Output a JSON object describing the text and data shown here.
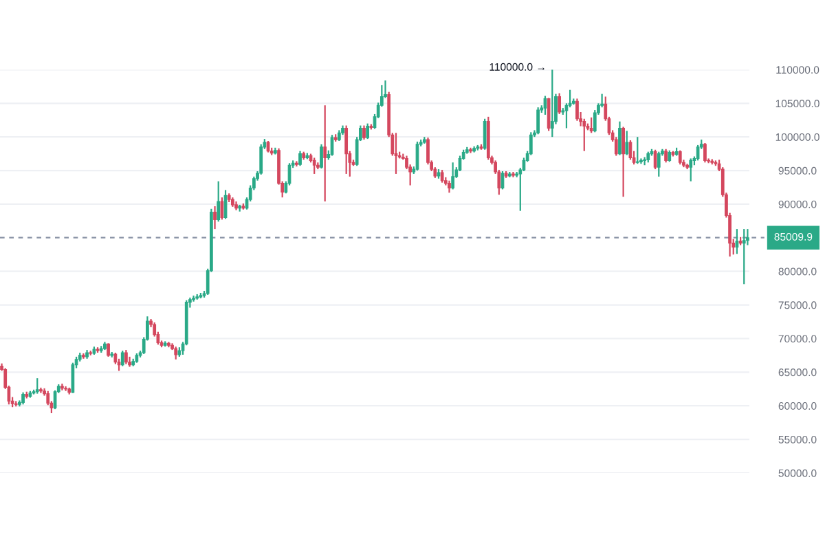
{
  "chart_data": {
    "type": "candlestick",
    "categories": [
      null,
      null,
      null,
      null,
      null,
      null,
      null,
      null,
      null,
      null,
      null,
      null,
      null,
      null,
      null,
      null,
      null,
      null,
      null,
      null,
      null,
      null,
      null,
      null,
      null,
      null,
      null,
      null,
      null,
      null,
      null,
      null,
      null,
      null,
      null,
      null,
      null,
      null,
      null,
      null,
      null,
      null,
      null,
      null,
      null,
      null,
      null,
      null,
      null,
      null,
      null,
      null,
      null,
      null,
      null,
      null,
      null,
      null,
      null,
      null,
      null,
      null,
      null,
      null,
      null,
      null,
      null,
      null,
      null,
      null,
      null,
      null,
      null,
      null,
      null,
      null,
      null,
      null,
      null,
      null,
      null,
      null,
      null,
      null,
      null,
      null,
      null,
      null,
      null,
      null,
      null,
      null,
      null,
      null,
      null,
      null,
      null,
      null,
      null,
      null,
      null,
      null,
      null,
      null,
      null,
      null,
      null,
      null,
      null,
      null,
      null,
      null,
      null,
      null,
      null,
      null,
      null,
      null,
      null,
      null,
      null,
      null,
      null,
      null,
      null,
      null,
      null,
      null,
      null,
      null,
      null,
      null,
      null,
      null,
      null,
      null,
      null,
      null,
      null,
      null,
      null,
      null,
      null,
      null,
      null,
      null,
      null,
      null,
      null,
      null,
      null,
      null,
      null,
      null,
      null,
      null,
      null,
      null,
      null,
      null,
      null,
      null,
      null,
      null,
      null,
      null,
      null,
      null,
      null,
      null,
      null,
      null,
      null,
      null,
      null,
      null,
      null,
      null,
      null,
      null,
      null,
      null,
      null,
      null,
      null,
      null,
      null,
      null,
      null,
      null,
      null,
      null,
      null,
      null,
      null,
      null,
      null,
      null,
      null,
      null,
      null,
      null,
      null,
      null,
      null,
      null,
      null,
      null,
      null,
      null,
      null
    ],
    "ohlc": [
      [
        65900,
        66300,
        65200,
        65400
      ],
      [
        65400,
        65600,
        62500,
        62750
      ],
      [
        62750,
        63000,
        60200,
        60700
      ],
      [
        60700,
        61300,
        59800,
        60300
      ],
      [
        60300,
        60700,
        59900,
        60200
      ],
      [
        60200,
        60800,
        59900,
        60500
      ],
      [
        60500,
        62000,
        60200,
        61700
      ],
      [
        61700,
        62100,
        61100,
        61400
      ],
      [
        61400,
        62200,
        61200,
        61900
      ],
      [
        61900,
        62400,
        61700,
        62100
      ],
      [
        62100,
        64100,
        61800,
        62400
      ],
      [
        62400,
        62700,
        61900,
        62200
      ],
      [
        62200,
        62600,
        61500,
        61800
      ],
      [
        61800,
        62200,
        60100,
        60400
      ],
      [
        60400,
        60700,
        58900,
        59700
      ],
      [
        59700,
        62300,
        59500,
        62100
      ],
      [
        62100,
        63200,
        61900,
        62900
      ],
      [
        62900,
        63300,
        62300,
        62600
      ],
      [
        62600,
        62900,
        62200,
        62500
      ],
      [
        62500,
        62700,
        61700,
        62000
      ],
      [
        62000,
        66400,
        61900,
        66100
      ],
      [
        66100,
        67300,
        65600,
        66900
      ],
      [
        66900,
        67900,
        66600,
        67500
      ],
      [
        67500,
        67800,
        67000,
        67300
      ],
      [
        67300,
        68300,
        67000,
        67900
      ],
      [
        67900,
        68200,
        67500,
        67800
      ],
      [
        67800,
        68800,
        67600,
        68400
      ],
      [
        68400,
        68700,
        67900,
        68200
      ],
      [
        68200,
        68900,
        67900,
        68500
      ],
      [
        68500,
        69500,
        68300,
        69200
      ],
      [
        69200,
        69300,
        67300,
        67500
      ],
      [
        67500,
        68000,
        67200,
        67700
      ],
      [
        67700,
        67900,
        66200,
        66500
      ],
      [
        66500,
        67000,
        65200,
        66100
      ],
      [
        66100,
        68200,
        65900,
        67900
      ],
      [
        67900,
        68300,
        66200,
        66500
      ],
      [
        66500,
        67300,
        65800,
        66100
      ],
      [
        66100,
        67000,
        65900,
        66600
      ],
      [
        66600,
        67800,
        66400,
        67500
      ],
      [
        67500,
        68200,
        67200,
        67900
      ],
      [
        67900,
        70200,
        67700,
        69900
      ],
      [
        69900,
        73300,
        69700,
        72600
      ],
      [
        72600,
        72900,
        71700,
        72100
      ],
      [
        72100,
        72400,
        70300,
        70600
      ],
      [
        70600,
        71000,
        69100,
        69400
      ],
      [
        69400,
        69700,
        68700,
        69000
      ],
      [
        69000,
        69600,
        68800,
        69300
      ],
      [
        69300,
        69500,
        68700,
        69000
      ],
      [
        69000,
        69300,
        68300,
        68500
      ],
      [
        68500,
        68800,
        66900,
        67600
      ],
      [
        67600,
        68700,
        67300,
        68200
      ],
      [
        68200,
        69500,
        67600,
        69200
      ],
      [
        69200,
        75700,
        69000,
        75400
      ],
      [
        75400,
        76100,
        74600,
        75800
      ],
      [
        75800,
        76400,
        75500,
        76000
      ],
      [
        76000,
        76600,
        75800,
        76200
      ],
      [
        76200,
        76800,
        76000,
        76400
      ],
      [
        76400,
        77100,
        76100,
        76700
      ],
      [
        76700,
        80400,
        76500,
        80100
      ],
      [
        80100,
        89300,
        79900,
        88800
      ],
      [
        88800,
        89700,
        86300,
        87700
      ],
      [
        87700,
        93400,
        87400,
        90400
      ],
      [
        90400,
        91000,
        87700,
        88000
      ],
      [
        88000,
        92100,
        87800,
        91300
      ],
      [
        91300,
        91600,
        90300,
        90700
      ],
      [
        90700,
        91000,
        89600,
        89900
      ],
      [
        89900,
        90400,
        89100,
        89400
      ],
      [
        89400,
        89900,
        88900,
        89700
      ],
      [
        89700,
        90100,
        89200,
        89400
      ],
      [
        89400,
        91000,
        89200,
        90700
      ],
      [
        90700,
        92800,
        90400,
        92400
      ],
      [
        92400,
        94100,
        92100,
        93800
      ],
      [
        93800,
        94900,
        93500,
        94600
      ],
      [
        94600,
        98900,
        94400,
        98500
      ],
      [
        98500,
        99700,
        98200,
        99200
      ],
      [
        99200,
        99400,
        97700,
        97900
      ],
      [
        97900,
        98400,
        97300,
        97600
      ],
      [
        97600,
        98400,
        97400,
        98000
      ],
      [
        98000,
        98300,
        92900,
        93100
      ],
      [
        93100,
        93400,
        91000,
        91800
      ],
      [
        91800,
        93400,
        91600,
        93100
      ],
      [
        93100,
        96100,
        92800,
        95800
      ],
      [
        95800,
        96500,
        95400,
        96100
      ],
      [
        96100,
        96400,
        95600,
        95900
      ],
      [
        95900,
        97900,
        95700,
        97500
      ],
      [
        97500,
        97800,
        96600,
        96900
      ],
      [
        96900,
        97600,
        96700,
        97200
      ],
      [
        97200,
        97500,
        96200,
        96500
      ],
      [
        96500,
        96900,
        94500,
        95800
      ],
      [
        95800,
        96200,
        95200,
        95500
      ],
      [
        95500,
        98900,
        95300,
        98500
      ],
      [
        98500,
        104700,
        90400,
        96900
      ],
      [
        96900,
        98000,
        96600,
        97400
      ],
      [
        97400,
        100300,
        97200,
        99900
      ],
      [
        99900,
        100400,
        99300,
        99600
      ],
      [
        99600,
        101000,
        99400,
        100600
      ],
      [
        100600,
        101700,
        100300,
        101300
      ],
      [
        101300,
        101700,
        94500,
        97500
      ],
      [
        97500,
        97900,
        94100,
        96200
      ],
      [
        96200,
        96600,
        95700,
        95900
      ],
      [
        95900,
        100000,
        95700,
        99600
      ],
      [
        99600,
        101700,
        99400,
        101300
      ],
      [
        101300,
        101700,
        99600,
        99900
      ],
      [
        99900,
        102000,
        99700,
        101600
      ],
      [
        101600,
        101900,
        101100,
        101400
      ],
      [
        101400,
        103400,
        101200,
        103000
      ],
      [
        103000,
        105100,
        102800,
        104700
      ],
      [
        104700,
        107700,
        104500,
        106000
      ],
      [
        106000,
        108400,
        105800,
        106300
      ],
      [
        106300,
        106700,
        100000,
        100300
      ],
      [
        100300,
        100600,
        97200,
        97500
      ],
      [
        97500,
        100600,
        94500,
        97200
      ],
      [
        97200,
        97800,
        96800,
        97000
      ],
      [
        97000,
        97500,
        96600,
        96800
      ],
      [
        96800,
        97200,
        95200,
        95500
      ],
      [
        95500,
        95900,
        92800,
        94800
      ],
      [
        94800,
        95600,
        94500,
        95200
      ],
      [
        95200,
        99300,
        95000,
        98900
      ],
      [
        98900,
        99600,
        98600,
        99200
      ],
      [
        99200,
        100000,
        99000,
        99600
      ],
      [
        99600,
        99900,
        95900,
        96200
      ],
      [
        96200,
        96500,
        94900,
        95200
      ],
      [
        95200,
        95500,
        93900,
        94200
      ],
      [
        94200,
        95200,
        93800,
        94700
      ],
      [
        94700,
        95100,
        93200,
        93500
      ],
      [
        93500,
        94000,
        92800,
        93100
      ],
      [
        93100,
        93500,
        91700,
        92400
      ],
      [
        92400,
        96200,
        92200,
        94100
      ],
      [
        94100,
        95500,
        93900,
        95100
      ],
      [
        95100,
        97200,
        94900,
        96800
      ],
      [
        96800,
        98100,
        96600,
        97700
      ],
      [
        97700,
        98500,
        97500,
        98100
      ],
      [
        98100,
        98400,
        97600,
        97900
      ],
      [
        97900,
        98600,
        97700,
        98300
      ],
      [
        98300,
        98800,
        98000,
        98500
      ],
      [
        98500,
        98900,
        98100,
        98300
      ],
      [
        98300,
        102700,
        98100,
        102300
      ],
      [
        102300,
        103000,
        96600,
        96900
      ],
      [
        96900,
        97200,
        95900,
        96200
      ],
      [
        96200,
        96500,
        94500,
        94800
      ],
      [
        94800,
        95100,
        91400,
        92400
      ],
      [
        92400,
        94900,
        92200,
        94600
      ],
      [
        94600,
        94900,
        93900,
        94200
      ],
      [
        94200,
        94800,
        94000,
        94500
      ],
      [
        94500,
        94800,
        94000,
        94300
      ],
      [
        94300,
        94800,
        94000,
        94500
      ],
      [
        94500,
        95400,
        89000,
        95100
      ],
      [
        95100,
        96900,
        94900,
        96500
      ],
      [
        96500,
        97900,
        96300,
        97500
      ],
      [
        97500,
        100700,
        97300,
        100300
      ],
      [
        100300,
        101000,
        100000,
        100600
      ],
      [
        100600,
        104400,
        100400,
        104000
      ],
      [
        104000,
        104700,
        103600,
        104300
      ],
      [
        104300,
        106100,
        103300,
        105700
      ],
      [
        105700,
        105800,
        100900,
        101300
      ],
      [
        101300,
        110000,
        100000,
        102300
      ],
      [
        102300,
        106400,
        101900,
        106000
      ],
      [
        106000,
        106500,
        103400,
        103700
      ],
      [
        103700,
        104300,
        103300,
        103900
      ],
      [
        103900,
        105000,
        101300,
        104700
      ],
      [
        104700,
        107000,
        104400,
        105000
      ],
      [
        105000,
        105700,
        104800,
        105300
      ],
      [
        105300,
        105700,
        102400,
        102700
      ],
      [
        102700,
        103700,
        101600,
        102300
      ],
      [
        102300,
        102700,
        97900,
        101600
      ],
      [
        101600,
        102000,
        101000,
        101300
      ],
      [
        101300,
        102900,
        100600,
        100900
      ],
      [
        100900,
        104000,
        100700,
        103600
      ],
      [
        103600,
        105000,
        103300,
        104700
      ],
      [
        104700,
        106400,
        104400,
        104900
      ],
      [
        104900,
        106000,
        102400,
        102700
      ],
      [
        102700,
        103000,
        100300,
        100600
      ],
      [
        100600,
        101000,
        99300,
        99600
      ],
      [
        99600,
        100000,
        97200,
        97500
      ],
      [
        97500,
        102300,
        97300,
        101300
      ],
      [
        101300,
        101500,
        91100,
        97500
      ],
      [
        97500,
        100900,
        97300,
        99200
      ],
      [
        99200,
        99500,
        96600,
        96900
      ],
      [
        96900,
        97900,
        95900,
        96200
      ],
      [
        96200,
        100000,
        96000,
        96300
      ],
      [
        96300,
        96800,
        96000,
        96500
      ],
      [
        96500,
        97000,
        95800,
        96600
      ],
      [
        96600,
        97800,
        96200,
        97500
      ],
      [
        97500,
        98200,
        97200,
        97800
      ],
      [
        97800,
        98100,
        95200,
        95500
      ],
      [
        95500,
        97800,
        94100,
        97500
      ],
      [
        97500,
        98200,
        97200,
        97900
      ],
      [
        97900,
        98200,
        96200,
        96500
      ],
      [
        96500,
        98000,
        96300,
        97700
      ],
      [
        97700,
        97900,
        97100,
        97400
      ],
      [
        97400,
        98400,
        97200,
        97800
      ],
      [
        97800,
        98000,
        95900,
        96200
      ],
      [
        96200,
        96600,
        95500,
        95800
      ],
      [
        95800,
        96000,
        95200,
        95500
      ],
      [
        95500,
        96800,
        93400,
        96500
      ],
      [
        96500,
        97100,
        95800,
        96800
      ],
      [
        96800,
        98800,
        96500,
        98500
      ],
      [
        98500,
        99600,
        98200,
        98900
      ],
      [
        98900,
        99100,
        96200,
        96500
      ],
      [
        96500,
        96800,
        96100,
        96400
      ],
      [
        96400,
        96700,
        95900,
        96200
      ],
      [
        96200,
        96500,
        95700,
        96000
      ],
      [
        96000,
        96600,
        94900,
        95200
      ],
      [
        95200,
        95500,
        91100,
        91400
      ],
      [
        91400,
        91700,
        88000,
        88300
      ],
      [
        88300,
        88700,
        82200,
        84200
      ],
      [
        84200,
        84800,
        82500,
        83600
      ],
      [
        83600,
        86300,
        82600,
        84500
      ],
      [
        84500,
        85100,
        83900,
        84200
      ],
      [
        84200,
        86300,
        78100,
        84600
      ],
      [
        84600,
        86300,
        83900,
        85009.9
      ]
    ],
    "colors": [
      "#d4475e",
      "#d4475e",
      "#d4475e",
      "#d4475e",
      "#d4475e",
      "#2aa987",
      "#2aa987",
      "#d4475e",
      "#2aa987",
      "#2aa987",
      "#2aa987",
      "#d4475e",
      "#d4475e",
      "#d4475e",
      "#d4475e",
      "#2aa987",
      "#2aa987",
      "#d4475e",
      "#d4475e",
      "#d4475e",
      "#2aa987",
      "#2aa987",
      "#2aa987",
      "#d4475e",
      "#2aa987",
      "#d4475e",
      "#2aa987",
      "#d4475e",
      "#2aa987",
      "#2aa987",
      "#d4475e",
      "#2aa987",
      "#d4475e",
      "#d4475e",
      "#2aa987",
      "#d4475e",
      "#d4475e",
      "#2aa987",
      "#2aa987",
      "#2aa987",
      "#2aa987",
      "#2aa987",
      "#d4475e",
      "#d4475e",
      "#d4475e",
      "#d4475e",
      "#2aa987",
      "#d4475e",
      "#d4475e",
      "#d4475e",
      "#2aa987",
      "#2aa987",
      "#2aa987",
      "#2aa987",
      "#2aa987",
      "#2aa987",
      "#2aa987",
      "#2aa987",
      "#2aa987",
      "#2aa987",
      "#d4475e",
      "#2aa987",
      "#d4475e",
      "#2aa987",
      "#d4475e",
      "#d4475e",
      "#d4475e",
      "#2aa987",
      "#d4475e",
      "#2aa987",
      "#2aa987",
      "#2aa987",
      "#2aa987",
      "#2aa987",
      "#2aa987",
      "#d4475e",
      "#d4475e",
      "#2aa987",
      "#d4475e",
      "#d4475e",
      "#2aa987",
      "#2aa987",
      "#2aa987",
      "#d4475e",
      "#2aa987",
      "#d4475e",
      "#2aa987",
      "#d4475e",
      "#d4475e",
      "#d4475e",
      "#2aa987",
      "#d4475e",
      "#2aa987",
      "#2aa987",
      "#d4475e",
      "#2aa987",
      "#2aa987",
      "#d4475e",
      "#d4475e",
      "#d4475e",
      "#2aa987",
      "#2aa987",
      "#d4475e",
      "#2aa987",
      "#d4475e",
      "#2aa987",
      "#2aa987",
      "#2aa987",
      "#2aa987",
      "#d4475e",
      "#d4475e",
      "#d4475e",
      "#d4475e",
      "#d4475e",
      "#d4475e",
      "#d4475e",
      "#2aa987",
      "#2aa987",
      "#2aa987",
      "#2aa987",
      "#d4475e",
      "#d4475e",
      "#d4475e",
      "#2aa987",
      "#d4475e",
      "#d4475e",
      "#d4475e",
      "#2aa987",
      "#2aa987",
      "#2aa987",
      "#2aa987",
      "#2aa987",
      "#d4475e",
      "#2aa987",
      "#2aa987",
      "#d4475e",
      "#2aa987",
      "#d4475e",
      "#d4475e",
      "#d4475e",
      "#d4475e",
      "#2aa987",
      "#d4475e",
      "#2aa987",
      "#d4475e",
      "#2aa987",
      "#2aa987",
      "#2aa987",
      "#2aa987",
      "#2aa987",
      "#2aa987",
      "#2aa987",
      "#2aa987",
      "#2aa987",
      "#d4475e",
      "#2aa987",
      "#2aa987",
      "#d4475e",
      "#2aa987",
      "#2aa987",
      "#2aa987",
      "#2aa987",
      "#d4475e",
      "#d4475e",
      "#d4475e",
      "#d4475e",
      "#d4475e",
      "#2aa987",
      "#2aa987",
      "#2aa987",
      "#d4475e",
      "#d4475e",
      "#d4475e",
      "#d4475e",
      "#2aa987",
      "#d4475e",
      "#2aa987",
      "#d4475e",
      "#d4475e",
      "#2aa987",
      "#2aa987",
      "#2aa987",
      "#2aa987",
      "#2aa987",
      "#d4475e",
      "#2aa987",
      "#2aa987",
      "#d4475e",
      "#2aa987",
      "#d4475e",
      "#2aa987",
      "#d4475e",
      "#d4475e",
      "#d4475e",
      "#2aa987",
      "#2aa987",
      "#2aa987",
      "#2aa987",
      "#d4475e",
      "#d4475e",
      "#d4475e",
      "#d4475e",
      "#d4475e",
      "#d4475e",
      "#d4475e",
      "#d4475e",
      "#d4475e",
      "#2aa987",
      "#d4475e",
      "#2aa987",
      "#2aa987"
    ],
    "ylim": [
      50000,
      110000
    ],
    "yticks": [
      {
        "value": 50000,
        "label": "50000.0"
      },
      {
        "value": 55000,
        "label": "55000.0"
      },
      {
        "value": 60000,
        "label": "60000.0"
      },
      {
        "value": 65000,
        "label": "65000.0"
      },
      {
        "value": 70000,
        "label": "70000.0"
      },
      {
        "value": 75000,
        "label": "75000.0"
      },
      {
        "value": 80000,
        "label": "80000.0"
      },
      {
        "value": 90000,
        "label": "90000.0"
      },
      {
        "value": 95000,
        "label": "95000.0"
      },
      {
        "value": 100000,
        "label": "100000.0"
      },
      {
        "value": 105000,
        "label": "105000.0"
      },
      {
        "value": 110000,
        "label": "110000.0"
      }
    ],
    "tick_labels": "y",
    "grid": "y",
    "ref_lines": [
      {
        "axis": "y",
        "value": 85009.9,
        "label": "85009.9",
        "color": "#8a94a6",
        "line_style": "dashed"
      }
    ],
    "annotations": [
      "110000.0 →"
    ]
  }
}
